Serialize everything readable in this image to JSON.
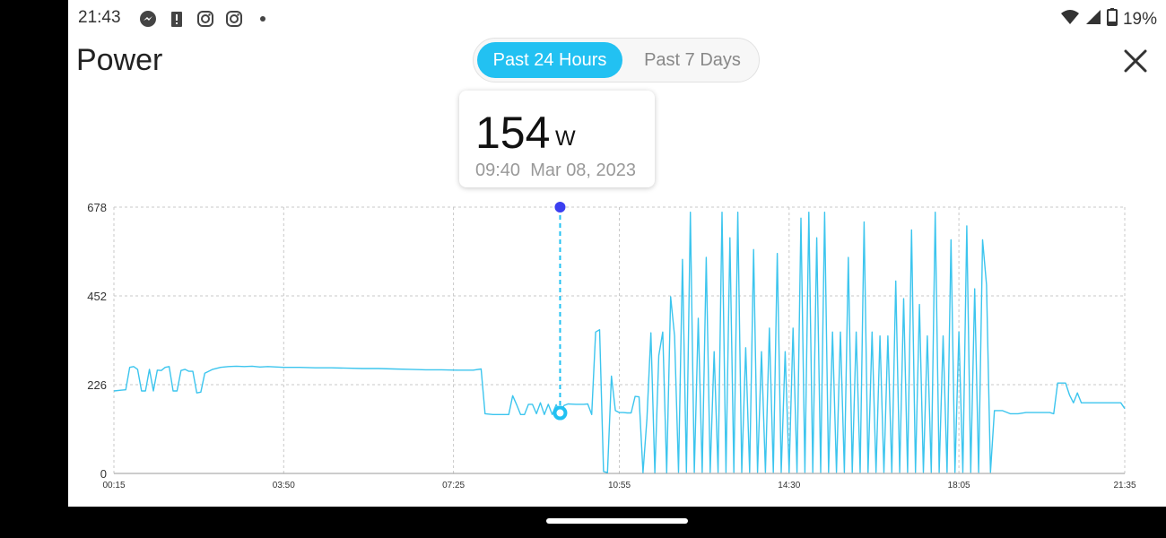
{
  "status_bar": {
    "time": "21:43",
    "left_icons": [
      "messenger-icon",
      "alert-icon",
      "instagram-icon",
      "instagram-icon",
      "dot-icon"
    ],
    "right_icons": [
      "wifi-icon",
      "signal-icon",
      "battery-icon"
    ],
    "battery": "19%"
  },
  "page": {
    "title": "Power"
  },
  "range_toggle": {
    "options": [
      "Past 24 Hours",
      "Past 7 Days"
    ],
    "selected": "Past 24 Hours"
  },
  "tooltip": {
    "value": "154",
    "unit": "W",
    "time": "09:40",
    "date": "Mar 08, 2023"
  },
  "colors": {
    "accent": "#22c1f2",
    "line": "#3cc5ee",
    "marker": "#3b3ff0",
    "grid": "#c8c8c8"
  },
  "chart_data": {
    "type": "line",
    "ylim": [
      0,
      678
    ],
    "y_ticks": [
      "678",
      "452",
      "226",
      "0"
    ],
    "x_ticks": [
      "00:15",
      "03:50",
      "07:25",
      "10:55",
      "14:30",
      "18:05",
      "21:35"
    ],
    "xlim": [
      "00:15",
      "21:35"
    ],
    "grid": true,
    "selected": {
      "x": "09:40",
      "y": 154
    },
    "series": [
      {
        "values": [
          [
            "00:15",
            210
          ],
          [
            "00:25",
            212
          ],
          [
            "00:30",
            213
          ],
          [
            "00:35",
            270
          ],
          [
            "00:40",
            272
          ],
          [
            "00:45",
            265
          ],
          [
            "00:50",
            210
          ],
          [
            "00:55",
            210
          ],
          [
            "01:00",
            265
          ],
          [
            "01:05",
            210
          ],
          [
            "01:10",
            263
          ],
          [
            "01:15",
            262
          ],
          [
            "01:20",
            270
          ],
          [
            "01:25",
            272
          ],
          [
            "01:30",
            210
          ],
          [
            "01:35",
            210
          ],
          [
            "01:40",
            262
          ],
          [
            "01:45",
            265
          ],
          [
            "01:50",
            260
          ],
          [
            "01:55",
            260
          ],
          [
            "02:00",
            205
          ],
          [
            "02:05",
            207
          ],
          [
            "02:10",
            255
          ],
          [
            "02:20",
            265
          ],
          [
            "02:30",
            270
          ],
          [
            "02:40",
            272
          ],
          [
            "02:50",
            273
          ],
          [
            "03:00",
            272
          ],
          [
            "03:10",
            273
          ],
          [
            "03:20",
            271
          ],
          [
            "03:30",
            272
          ],
          [
            "03:50",
            270
          ],
          [
            "04:10",
            270
          ],
          [
            "04:30",
            269
          ],
          [
            "04:50",
            269
          ],
          [
            "05:10",
            268
          ],
          [
            "05:30",
            267
          ],
          [
            "05:50",
            267
          ],
          [
            "06:10",
            266
          ],
          [
            "06:30",
            265
          ],
          [
            "06:50",
            264
          ],
          [
            "07:10",
            264
          ],
          [
            "07:30",
            263
          ],
          [
            "07:50",
            263
          ],
          [
            "08:00",
            266
          ],
          [
            "08:05",
            152
          ],
          [
            "08:15",
            150
          ],
          [
            "08:25",
            150
          ],
          [
            "08:35",
            150
          ],
          [
            "08:40",
            198
          ],
          [
            "08:45",
            175
          ],
          [
            "08:50",
            150
          ],
          [
            "08:55",
            150
          ],
          [
            "09:00",
            176
          ],
          [
            "09:05",
            176
          ],
          [
            "09:10",
            152
          ],
          [
            "09:15",
            180
          ],
          [
            "09:20",
            150
          ],
          [
            "09:25",
            176
          ],
          [
            "09:30",
            150
          ],
          [
            "09:35",
            175
          ],
          [
            "09:40",
            154
          ],
          [
            "09:45",
            173
          ],
          [
            "09:50",
            177
          ],
          [
            "10:00",
            176
          ],
          [
            "10:10",
            176
          ],
          [
            "10:15",
            177
          ],
          [
            "10:20",
            150
          ],
          [
            "10:25",
            360
          ],
          [
            "10:30",
            366
          ],
          [
            "10:35",
            5
          ],
          [
            "10:40",
            2
          ],
          [
            "10:45",
            248
          ],
          [
            "10:50",
            160
          ],
          [
            "10:55",
            155
          ],
          [
            "11:00",
            155
          ],
          [
            "11:05",
            154
          ],
          [
            "11:10",
            154
          ],
          [
            "11:15",
            196
          ],
          [
            "11:20",
            195
          ],
          [
            "11:25",
            2
          ],
          [
            "11:30",
            140
          ],
          [
            "11:35",
            358
          ],
          [
            "11:40",
            2
          ],
          [
            "11:45",
            300
          ],
          [
            "11:50",
            360
          ],
          [
            "11:55",
            2
          ],
          [
            "12:00",
            450
          ],
          [
            "12:05",
            350
          ],
          [
            "12:10",
            3
          ],
          [
            "12:15",
            545
          ],
          [
            "12:20",
            3
          ],
          [
            "12:25",
            665
          ],
          [
            "12:30",
            3
          ],
          [
            "12:35",
            395
          ],
          [
            "12:40",
            3
          ],
          [
            "12:45",
            550
          ],
          [
            "12:50",
            3
          ],
          [
            "12:55",
            310
          ],
          [
            "13:00",
            3
          ],
          [
            "13:05",
            665
          ],
          [
            "13:10",
            3
          ],
          [
            "13:15",
            600
          ],
          [
            "13:20",
            3
          ],
          [
            "13:25",
            665
          ],
          [
            "13:30",
            3
          ],
          [
            "13:35",
            320
          ],
          [
            "13:40",
            3
          ],
          [
            "13:45",
            570
          ],
          [
            "13:50",
            3
          ],
          [
            "13:55",
            310
          ],
          [
            "14:00",
            3
          ],
          [
            "14:05",
            370
          ],
          [
            "14:10",
            3
          ],
          [
            "14:15",
            560
          ],
          [
            "14:20",
            3
          ],
          [
            "14:25",
            310
          ],
          [
            "14:30",
            3
          ],
          [
            "14:35",
            370
          ],
          [
            "14:40",
            3
          ],
          [
            "14:45",
            650
          ],
          [
            "14:50",
            3
          ],
          [
            "14:55",
            665
          ],
          [
            "15:00",
            3
          ],
          [
            "15:05",
            600
          ],
          [
            "15:10",
            3
          ],
          [
            "15:15",
            665
          ],
          [
            "15:20",
            3
          ],
          [
            "15:25",
            360
          ],
          [
            "15:30",
            3
          ],
          [
            "15:35",
            360
          ],
          [
            "15:40",
            3
          ],
          [
            "15:45",
            550
          ],
          [
            "15:50",
            3
          ],
          [
            "15:55",
            360
          ],
          [
            "16:00",
            3
          ],
          [
            "16:05",
            640
          ],
          [
            "16:10",
            3
          ],
          [
            "16:15",
            360
          ],
          [
            "16:20",
            3
          ],
          [
            "16:25",
            350
          ],
          [
            "16:30",
            3
          ],
          [
            "16:35",
            350
          ],
          [
            "16:40",
            3
          ],
          [
            "16:45",
            490
          ],
          [
            "16:50",
            3
          ],
          [
            "16:55",
            445
          ],
          [
            "17:00",
            3
          ],
          [
            "17:05",
            620
          ],
          [
            "17:10",
            3
          ],
          [
            "17:15",
            430
          ],
          [
            "17:20",
            3
          ],
          [
            "17:25",
            350
          ],
          [
            "17:30",
            3
          ],
          [
            "17:35",
            665
          ],
          [
            "17:40",
            3
          ],
          [
            "17:45",
            350
          ],
          [
            "17:50",
            3
          ],
          [
            "17:55",
            595
          ],
          [
            "18:00",
            3
          ],
          [
            "18:05",
            360
          ],
          [
            "18:10",
            3
          ],
          [
            "18:15",
            630
          ],
          [
            "18:20",
            3
          ],
          [
            "18:25",
            470
          ],
          [
            "18:30",
            3
          ],
          [
            "18:35",
            595
          ],
          [
            "18:40",
            480
          ],
          [
            "18:45",
            3
          ],
          [
            "18:50",
            160
          ],
          [
            "19:00",
            160
          ],
          [
            "19:10",
            152
          ],
          [
            "19:20",
            152
          ],
          [
            "19:30",
            155
          ],
          [
            "19:40",
            155
          ],
          [
            "19:50",
            155
          ],
          [
            "20:00",
            155
          ],
          [
            "20:05",
            152
          ],
          [
            "20:10",
            230
          ],
          [
            "20:20",
            230
          ],
          [
            "20:25",
            200
          ],
          [
            "20:30",
            180
          ],
          [
            "20:35",
            205
          ],
          [
            "20:40",
            180
          ],
          [
            "20:50",
            180
          ],
          [
            "21:00",
            180
          ],
          [
            "21:10",
            180
          ],
          [
            "21:20",
            180
          ],
          [
            "21:30",
            180
          ],
          [
            "21:35",
            165
          ]
        ]
      }
    ]
  },
  "nav": {
    "home_indicator": "home-indicator"
  }
}
